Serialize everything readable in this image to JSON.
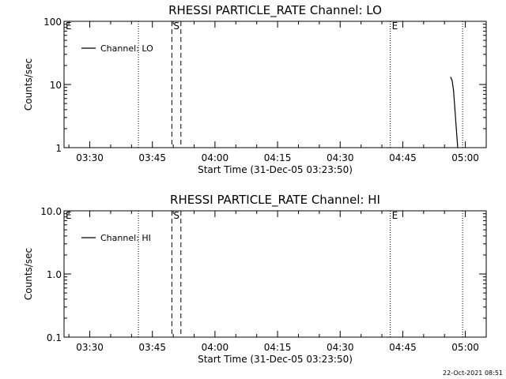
{
  "footer": {
    "timestamp": "22-Oct-2021 08:51"
  },
  "chart_data": [
    {
      "type": "line",
      "title": "RHESSI PARTICLE_RATE Channel: LO",
      "xlabel": "Start Time (31-Dec-05 03:23:50)",
      "ylabel": "Counts/sec",
      "yscale": "log",
      "ylim": [
        1,
        100
      ],
      "y_ticks": [
        {
          "value": 1,
          "label": "1"
        },
        {
          "value": 10,
          "label": "10"
        },
        {
          "value": 100,
          "label": "100"
        }
      ],
      "xlim": [
        "03:23:50",
        "05:05:00"
      ],
      "x_ticks": [
        "03:30",
        "03:45",
        "04:00",
        "04:15",
        "04:30",
        "04:45",
        "05:00"
      ],
      "legend": {
        "position": "top-left",
        "entries": [
          "Channel: LO"
        ]
      },
      "series": [
        {
          "name": "Channel: LO",
          "color": "#000000",
          "points": [
            {
              "x": "04:56:30",
              "y": 13
            },
            {
              "x": "04:56:50",
              "y": 11.5
            },
            {
              "x": "04:57:10",
              "y": 8
            },
            {
              "x": "04:57:30",
              "y": 4
            },
            {
              "x": "04:57:50",
              "y": 2
            },
            {
              "x": "04:58:10",
              "y": 1
            }
          ]
        }
      ],
      "markers": [
        {
          "time": "03:23:50",
          "style": "dotted",
          "label": "E"
        },
        {
          "time": "03:41:40",
          "style": "dotted",
          "label": ""
        },
        {
          "time": "03:49:40",
          "style": "dashed",
          "label": "S"
        },
        {
          "time": "03:51:50",
          "style": "dashed",
          "label": ""
        },
        {
          "time": "04:42:00",
          "style": "dotted",
          "label": "E"
        },
        {
          "time": "04:59:20",
          "style": "dotted",
          "label": ""
        }
      ]
    },
    {
      "type": "line",
      "title": "RHESSI PARTICLE_RATE Channel: HI",
      "xlabel": "Start Time (31-Dec-05 03:23:50)",
      "ylabel": "Counts/sec",
      "yscale": "log",
      "ylim": [
        0.1,
        10
      ],
      "y_ticks": [
        {
          "value": 0.1,
          "label": "0.1"
        },
        {
          "value": 1,
          "label": "1.0"
        },
        {
          "value": 10,
          "label": "10.0"
        }
      ],
      "xlim": [
        "03:23:50",
        "05:05:00"
      ],
      "x_ticks": [
        "03:30",
        "03:45",
        "04:00",
        "04:15",
        "04:30",
        "04:45",
        "05:00"
      ],
      "legend": {
        "position": "top-left",
        "entries": [
          "Channel: HI"
        ]
      },
      "series": [
        {
          "name": "Channel: HI",
          "color": "#000000",
          "points": []
        }
      ],
      "markers": [
        {
          "time": "03:23:50",
          "style": "dotted",
          "label": "E"
        },
        {
          "time": "03:41:40",
          "style": "dotted",
          "label": ""
        },
        {
          "time": "03:49:40",
          "style": "dashed",
          "label": "S"
        },
        {
          "time": "03:51:50",
          "style": "dashed",
          "label": ""
        },
        {
          "time": "04:42:00",
          "style": "dotted",
          "label": "E"
        },
        {
          "time": "04:59:20",
          "style": "dotted",
          "label": ""
        }
      ]
    }
  ]
}
